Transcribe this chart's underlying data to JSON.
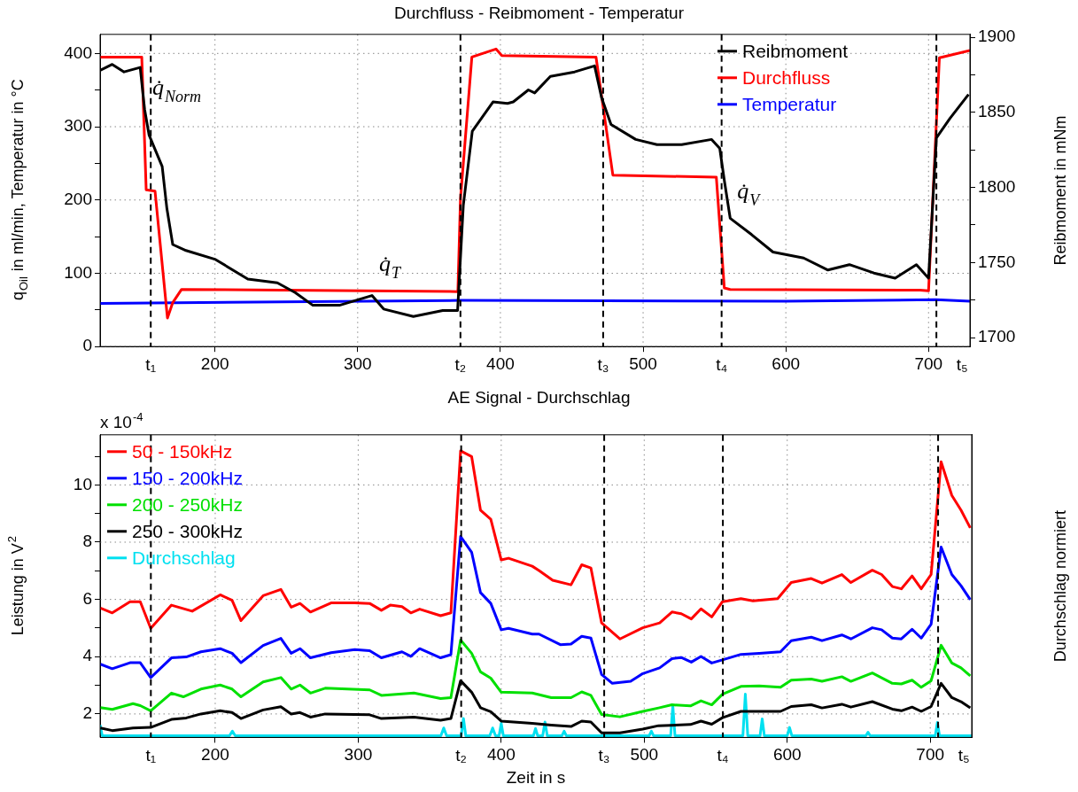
{
  "chart_data": [
    {
      "type": "line",
      "title": "Durchfluss - Reibmoment - Temperatur",
      "ylabel": "q$_{Oil}$ in ml/min, Temperatur in °C",
      "y2label": "Reibmoment in mNm",
      "xlim": [
        119.5,
        729
      ],
      "xticks": [
        200,
        300,
        400,
        500,
        600,
        700
      ],
      "ylim": [
        0,
        426
      ],
      "yticks": [
        0,
        {
          "value": 50,
          "label": null
        },
        100,
        {
          "value": 150,
          "label": null
        },
        200,
        {
          "value": 250,
          "label": null
        },
        300,
        {
          "value": 350,
          "label": null
        },
        400
      ],
      "y2lim": [
        1694,
        1902
      ],
      "y2ticks": [
        1700,
        {
          "value": 1725,
          "label": null
        },
        1750,
        {
          "value": 1775,
          "label": null
        },
        1800,
        {
          "value": 1825,
          "label": null
        },
        1850,
        {
          "value": 1875,
          "label": null
        },
        1900
      ],
      "grid": true,
      "legend": "top right",
      "marker": "none",
      "line_style": "solid",
      "ref_lines": [
        {
          "axis": "x",
          "value": 155,
          "label": "t₁",
          "color": "#000000",
          "line_style": "dashed"
        },
        {
          "axis": "x",
          "value": 372,
          "label": "t₂",
          "color": "#000000",
          "line_style": "dashed"
        },
        {
          "axis": "x",
          "value": 472,
          "label": "t₃",
          "color": "#000000",
          "line_style": "dashed"
        },
        {
          "axis": "x",
          "value": 555,
          "label": "t₄",
          "color": "#000000",
          "line_style": "dashed"
        },
        {
          "axis": "x",
          "value": 705.5,
          "label": "t₅",
          "color": "#000000",
          "line_style": "dashed"
        }
      ],
      "annotations": [
        {
          "text": "q̇$_{Norm}$",
          "x": 151.2,
          "y": 317
        },
        {
          "text": "q̇$_{T}$",
          "x": 310,
          "y": 76
        },
        {
          "text": "q̇$_{V}$",
          "x": 561,
          "y": 175
        }
      ],
      "series": [
        {
          "name": "Reibmoment",
          "color": "#000000",
          "axis": "y2",
          "x": [
            119.5,
            128,
            136.3,
            147.6,
            150.7,
            153.8,
            163,
            166.3,
            170.4,
            179.7,
            200.4,
            223,
            243.7,
            256.2,
            268.6,
            287.2,
            310,
            318.2,
            339,
            359.6,
            370,
            374,
            380.3,
            394.8,
            405,
            409,
            419.6,
            424,
            435,
            452,
            466,
            471,
            477.5,
            494.8,
            509.7,
            527,
            548,
            553.7,
            557,
            561,
            576,
            591,
            612.5,
            629.5,
            644.5,
            661.7,
            676.6,
            691.5,
            700,
            705.5,
            715,
            728
          ],
          "values": [
            1878,
            1882,
            1877,
            1880,
            1852,
            1835,
            1814,
            1786,
            1762,
            1758,
            1752,
            1739,
            1736.5,
            1730,
            1721.5,
            1721.5,
            1728,
            1719,
            1714,
            1718,
            1718,
            1788,
            1837.5,
            1857,
            1856,
            1857,
            1865,
            1863,
            1874,
            1877,
            1881,
            1859.5,
            1842,
            1832,
            1828.5,
            1828.5,
            1832,
            1826,
            1804,
            1779.5,
            1768.6,
            1757,
            1753,
            1745,
            1748.6,
            1743,
            1739.6,
            1748.6,
            1739.6,
            1833,
            1846,
            1862
          ]
        },
        {
          "name": "Durchfluss",
          "color": "#ff0000",
          "x": [
            119.5,
            148.7,
            151.8,
            158,
            166.7,
            170.4,
            176.6,
            370.2,
            372,
            380,
            396.9,
            401,
            467,
            478.8,
            551.3,
            556.9,
            561,
            694,
            700,
            707.6,
            729
          ],
          "values": [
            395,
            395,
            214,
            212,
            39,
            60,
            78,
            75,
            201,
            395,
            406,
            397,
            395,
            234,
            231,
            80,
            78,
            77,
            76,
            394,
            404
          ]
        },
        {
          "name": "Temperatur",
          "color": "#0000ff",
          "x": [
            119.5,
            372,
            600,
            705,
            729
          ],
          "values": [
            59,
            63,
            62,
            64,
            62
          ]
        }
      ]
    },
    {
      "type": "line",
      "title": "AE Signal - Durchschlag",
      "xlabel": "Zeit in s",
      "ylabel": "Leistung in V$^{2}$",
      "y2label": "Durchschlag normiert",
      "xlim": [
        119.5,
        729
      ],
      "xticks": [
        200,
        300,
        400,
        500,
        600,
        700
      ],
      "ylim": [
        1.18,
        11.75
      ],
      "yticks": [
        2,
        {
          "value": 3,
          "label": null
        },
        4,
        {
          "value": 5,
          "label": null
        },
        6,
        {
          "value": 7,
          "label": null
        },
        8,
        {
          "value": 9,
          "label": null
        },
        10,
        {
          "value": 11,
          "label": null
        }
      ],
      "grid": true,
      "legend": "top left",
      "marker": "none",
      "line_style": "solid",
      "ref_lines": [
        {
          "axis": "x",
          "value": 155,
          "label": "t₁",
          "color": "#000000",
          "line_style": "dashed"
        },
        {
          "axis": "x",
          "value": 372,
          "label": "t₂",
          "color": "#000000",
          "line_style": "dashed"
        },
        {
          "axis": "x",
          "value": 472,
          "label": "t₃",
          "color": "#000000",
          "line_style": "dashed"
        },
        {
          "axis": "x",
          "value": 555,
          "label": "t₄",
          "color": "#000000",
          "line_style": "dashed"
        },
        {
          "axis": "x",
          "value": 705.5,
          "label": "t₅",
          "color": "#000000",
          "line_style": "dashed"
        }
      ],
      "annotations": [
        "x 10$^{-4}$"
      ],
      "series": [
        {
          "name": "50 - 150kHz",
          "color": "#ff0000",
          "x": [
            119.7,
            128,
            140.4,
            147.6,
            154.9,
            169.4,
            183.9,
            203.5,
            211.8,
            218,
            233.5,
            245.9,
            253.1,
            259.3,
            266.6,
            281,
            297.6,
            308,
            316.2,
            322.4,
            330.6,
            336.8,
            343,
            357.6,
            364.8,
            371.6,
            379.3,
            385.5,
            392.7,
            400,
            405.1,
            421.7,
            426.4,
            436,
            448.8,
            456.3,
            462.7,
            470.2,
            483,
            499,
            510.8,
            519.4,
            525.9,
            532.9,
            539.7,
            547.2,
            554.7,
            567.6,
            576.1,
            593.3,
            602.8,
            616.8,
            624.3,
            638.2,
            644.5,
            659.5,
            666,
            673.5,
            679.8,
            687.3,
            693.7,
            700.6,
            707.6,
            715.1,
            721.5,
            728
          ],
          "values": [
            5.7,
            5.53,
            5.92,
            5.92,
            4.99,
            5.8,
            5.59,
            6.16,
            5.97,
            5.26,
            6.13,
            6.35,
            5.73,
            5.86,
            5.56,
            5.88,
            5.88,
            5.86,
            5.62,
            5.8,
            5.75,
            5.53,
            5.66,
            5.43,
            5.53,
            11.19,
            10.99,
            9.12,
            8.8,
            7.38,
            7.44,
            7.16,
            7.01,
            6.67,
            6.51,
            7.21,
            7.1,
            5.18,
            4.62,
            5.01,
            5.18,
            5.56,
            5.5,
            5.32,
            5.67,
            5.39,
            5.92,
            6.03,
            5.95,
            6.03,
            6.59,
            6.73,
            6.57,
            6.87,
            6.59,
            7.02,
            6.87,
            6.45,
            6.37,
            6.82,
            6.37,
            6.87,
            10.81,
            9.63,
            9.12,
            8.5
          ]
        },
        {
          "name": "150 - 200kHz",
          "color": "#0000ff",
          "x": [
            119.7,
            128,
            140.4,
            147.6,
            154.9,
            169.4,
            179.7,
            190,
            203.5,
            211.8,
            218,
            233.5,
            245.9,
            253.1,
            259.3,
            266.6,
            281,
            297.6,
            308,
            316.2,
            330.6,
            336.8,
            343,
            357.6,
            364.8,
            371.6,
            379.3,
            385.5,
            392.7,
            400,
            405.1,
            421.7,
            426.4,
            441.3,
            448.8,
            456.3,
            462.7,
            470.2,
            477.7,
            490.5,
            499,
            510.8,
            519.4,
            525.9,
            532.9,
            539.7,
            547.2,
            554.7,
            567.6,
            580.4,
            595.3,
            602.8,
            616.8,
            624.3,
            638.2,
            644.5,
            659.5,
            666,
            673.5,
            679.8,
            687.3,
            693.7,
            700.6,
            707.6,
            715.1,
            721.5,
            728
          ],
          "values": [
            3.74,
            3.58,
            3.79,
            3.79,
            3.27,
            3.96,
            3.99,
            4.17,
            4.28,
            4.12,
            3.79,
            4.39,
            4.64,
            4.12,
            4.28,
            3.96,
            4.14,
            4.25,
            4.21,
            3.96,
            4.17,
            4.01,
            4.28,
            3.96,
            4.07,
            8.2,
            7.65,
            6.24,
            5.86,
            4.94,
            4.99,
            4.79,
            4.79,
            4.42,
            4.44,
            4.71,
            4.65,
            3.38,
            3.07,
            3.14,
            3.41,
            3.61,
            3.93,
            3.97,
            3.81,
            4.01,
            3.78,
            3.89,
            4.08,
            4.12,
            4.17,
            4.56,
            4.68,
            4.56,
            4.76,
            4.62,
            5.01,
            4.94,
            4.65,
            4.62,
            4.96,
            4.65,
            5.13,
            7.83,
            6.87,
            6.48,
            5.99
          ]
        },
        {
          "name": "200 - 250kHz",
          "color": "#00e000",
          "x": [
            119.7,
            128,
            142.5,
            147.6,
            154.9,
            169.4,
            177.7,
            190,
            203.5,
            211.8,
            218,
            233.5,
            245.9,
            253.1,
            259.3,
            266.6,
            276.9,
            308,
            316.2,
            339,
            357.6,
            364.8,
            371.6,
            379.3,
            385.5,
            392.7,
            400,
            421.7,
            435,
            448.8,
            456.3,
            462.7,
            470.2,
            483,
            499,
            510,
            519.4,
            532.3,
            539.7,
            547.2,
            554.7,
            567.6,
            580.4,
            595.3,
            602.8,
            616.8,
            624.3,
            638.2,
            644.5,
            659.5,
            673.5,
            679.8,
            687.3,
            693.7,
            700.6,
            707.6,
            715.1,
            721.5,
            728
          ],
          "values": [
            2.22,
            2.16,
            2.36,
            2.29,
            2.11,
            2.73,
            2.6,
            2.87,
            3.01,
            2.87,
            2.6,
            3.12,
            3.27,
            2.87,
            3.01,
            2.73,
            2.9,
            2.84,
            2.65,
            2.73,
            2.54,
            2.57,
            4.58,
            4.12,
            3.47,
            3.25,
            2.76,
            2.73,
            2.57,
            2.57,
            2.77,
            2.65,
            1.98,
            1.9,
            2.09,
            2.21,
            2.32,
            2.28,
            2.46,
            2.32,
            2.69,
            2.96,
            2.98,
            2.93,
            3.18,
            3.22,
            3.14,
            3.3,
            3.14,
            3.43,
            3.07,
            3.05,
            3.18,
            2.93,
            3.16,
            4.4,
            3.78,
            3.61,
            3.33
          ]
        },
        {
          "name": "250 - 300kHz",
          "color": "#000000",
          "x": [
            119.7,
            128,
            142.5,
            154.9,
            169.4,
            179.7,
            190,
            203.5,
            211.8,
            218,
            233.5,
            245.9,
            253.1,
            259.3,
            266.6,
            276.9,
            308,
            316.2,
            339,
            357.6,
            364.8,
            371.6,
            379.3,
            385.5,
            392.7,
            400,
            421.7,
            435,
            448.8,
            456.3,
            462.7,
            470.2,
            483,
            499,
            510,
            532.3,
            539.7,
            547.2,
            554.7,
            567.6,
            580.4,
            595.3,
            602.8,
            616.8,
            624.3,
            638.2,
            644.5,
            659.5,
            673.5,
            679.8,
            687.3,
            693.7,
            700.6,
            707.6,
            715.1,
            721.5,
            728
          ],
          "values": [
            1.51,
            1.42,
            1.51,
            1.53,
            1.81,
            1.86,
            2,
            2.11,
            2.05,
            1.84,
            2.14,
            2.25,
            2,
            2.05,
            1.89,
            2,
            1.97,
            1.84,
            1.89,
            1.78,
            1.84,
            3.16,
            2.76,
            2.22,
            2.08,
            1.75,
            1.67,
            1.61,
            1.56,
            1.75,
            1.72,
            1.34,
            1.34,
            1.47,
            1.59,
            1.63,
            1.75,
            1.64,
            1.87,
            2.09,
            2.09,
            2.09,
            2.26,
            2.32,
            2.21,
            2.34,
            2.24,
            2.43,
            2.17,
            2.11,
            2.24,
            2.09,
            2.26,
            3.07,
            2.57,
            2.43,
            2.21
          ]
        },
        {
          "name": "Durchschlag",
          "color": "#00e0f0",
          "x": [
            119.5,
            121,
            210,
            212,
            214,
            357.8,
            359.8,
            361.8,
            372,
            373.6,
            375.2,
            392,
            394,
            396,
            398.5,
            400,
            401.5,
            422.5,
            424,
            425.5,
            429,
            430.6,
            432.2,
            442.5,
            444,
            445.5,
            503.5,
            505,
            506.5,
            518.5,
            520,
            521.5,
            569,
            570.7,
            572.4,
            581,
            582.5,
            584,
            600,
            601.6,
            603.2,
            655,
            656.5,
            658,
            703.5,
            705,
            706.5,
            729
          ],
          "values": [
            1.62,
            1.24,
            1.24,
            1.4,
            1.24,
            1.24,
            1.51,
            1.24,
            1.24,
            1.84,
            1.24,
            1.24,
            1.51,
            1.24,
            1.24,
            1.67,
            1.24,
            1.24,
            1.49,
            1.24,
            1.24,
            1.72,
            1.24,
            1.24,
            1.4,
            1.24,
            1.24,
            1.4,
            1.24,
            1.24,
            2.28,
            1.24,
            1.24,
            2.69,
            1.24,
            1.24,
            1.83,
            1.24,
            1.24,
            1.53,
            1.24,
            1.24,
            1.36,
            1.24,
            1.24,
            1.7,
            1.24,
            1.24
          ]
        }
      ]
    }
  ]
}
